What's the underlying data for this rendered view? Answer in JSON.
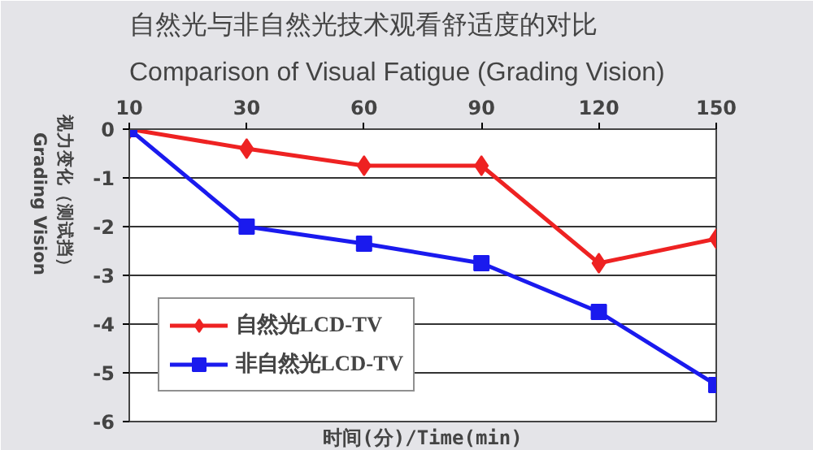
{
  "chart_data": {
    "type": "line",
    "title": "自然光与非自然光技术观看舒适度的对比",
    "subtitle": "Comparison of Visual Fatigue (Grading Vision)",
    "xlabel": "时间(分)/Time(min)",
    "ylabel": "视力变化（测试挡）\nGrading Vision",
    "categories": [
      "10",
      "30",
      "60",
      "90",
      "120",
      "150"
    ],
    "series": [
      {
        "name": "自然光LCD-TV",
        "color": "#ee2222",
        "marker": "diamond",
        "values": [
          0,
          -0.4,
          -0.75,
          -0.75,
          -2.75,
          -2.25
        ]
      },
      {
        "name": "非自然光LCD-TV",
        "color": "#1a1aee",
        "marker": "square",
        "values": [
          0,
          -2,
          -2.35,
          -2.75,
          -3.75,
          -5.25
        ]
      }
    ],
    "ylim": [
      -6,
      0
    ],
    "yticks": [
      -6,
      -5,
      -4,
      -3,
      -2,
      -1,
      0
    ],
    "grid": "y",
    "legend": "bottom left"
  }
}
